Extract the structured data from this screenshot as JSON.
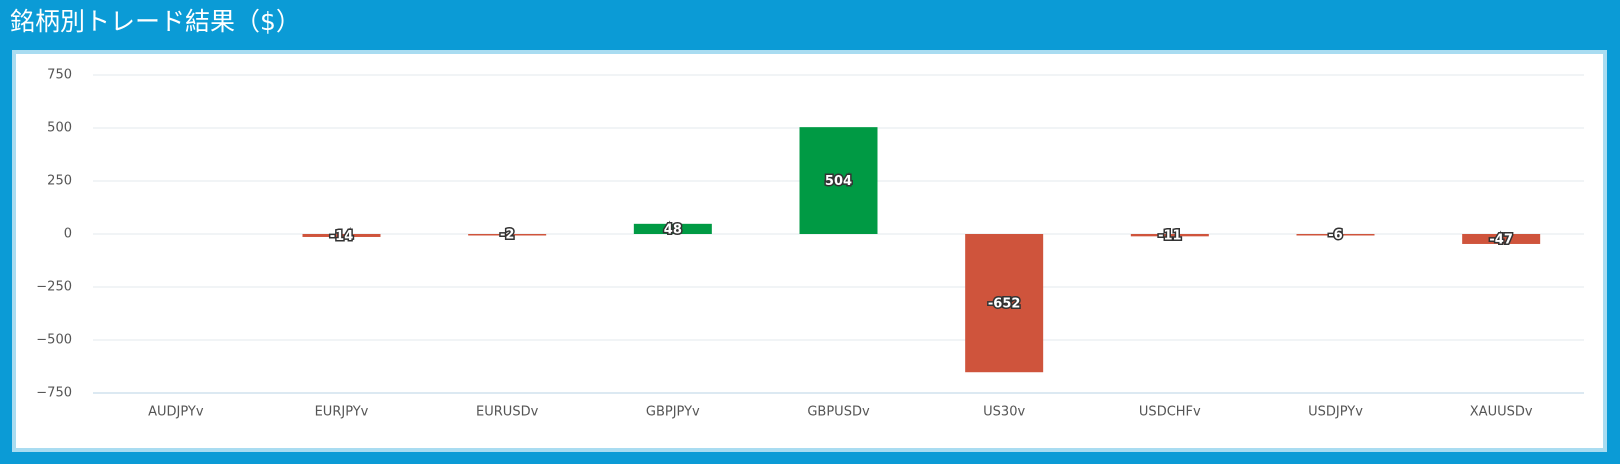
{
  "chart_data": {
    "type": "bar",
    "title": "銘柄別トレード結果（$）",
    "categories": [
      "AUDJPYv",
      "EURJPYv",
      "EURUSDv",
      "GBPJPYv",
      "GBPUSDv",
      "US30v",
      "USDCHFv",
      "USDJPYv",
      "XAUUSDv"
    ],
    "values": [
      null,
      -14,
      -2,
      48,
      504,
      -652,
      -11,
      -6,
      -47
    ],
    "color": "#009a44",
    "negative_color": "#cf543c",
    "ylim": [
      -750,
      750
    ],
    "yticks": [
      {
        "value": -750,
        "label": "−750"
      },
      {
        "value": -500,
        "label": "−500"
      },
      {
        "value": -250,
        "label": "−250"
      },
      0,
      250,
      500,
      750
    ],
    "grid": true
  }
}
